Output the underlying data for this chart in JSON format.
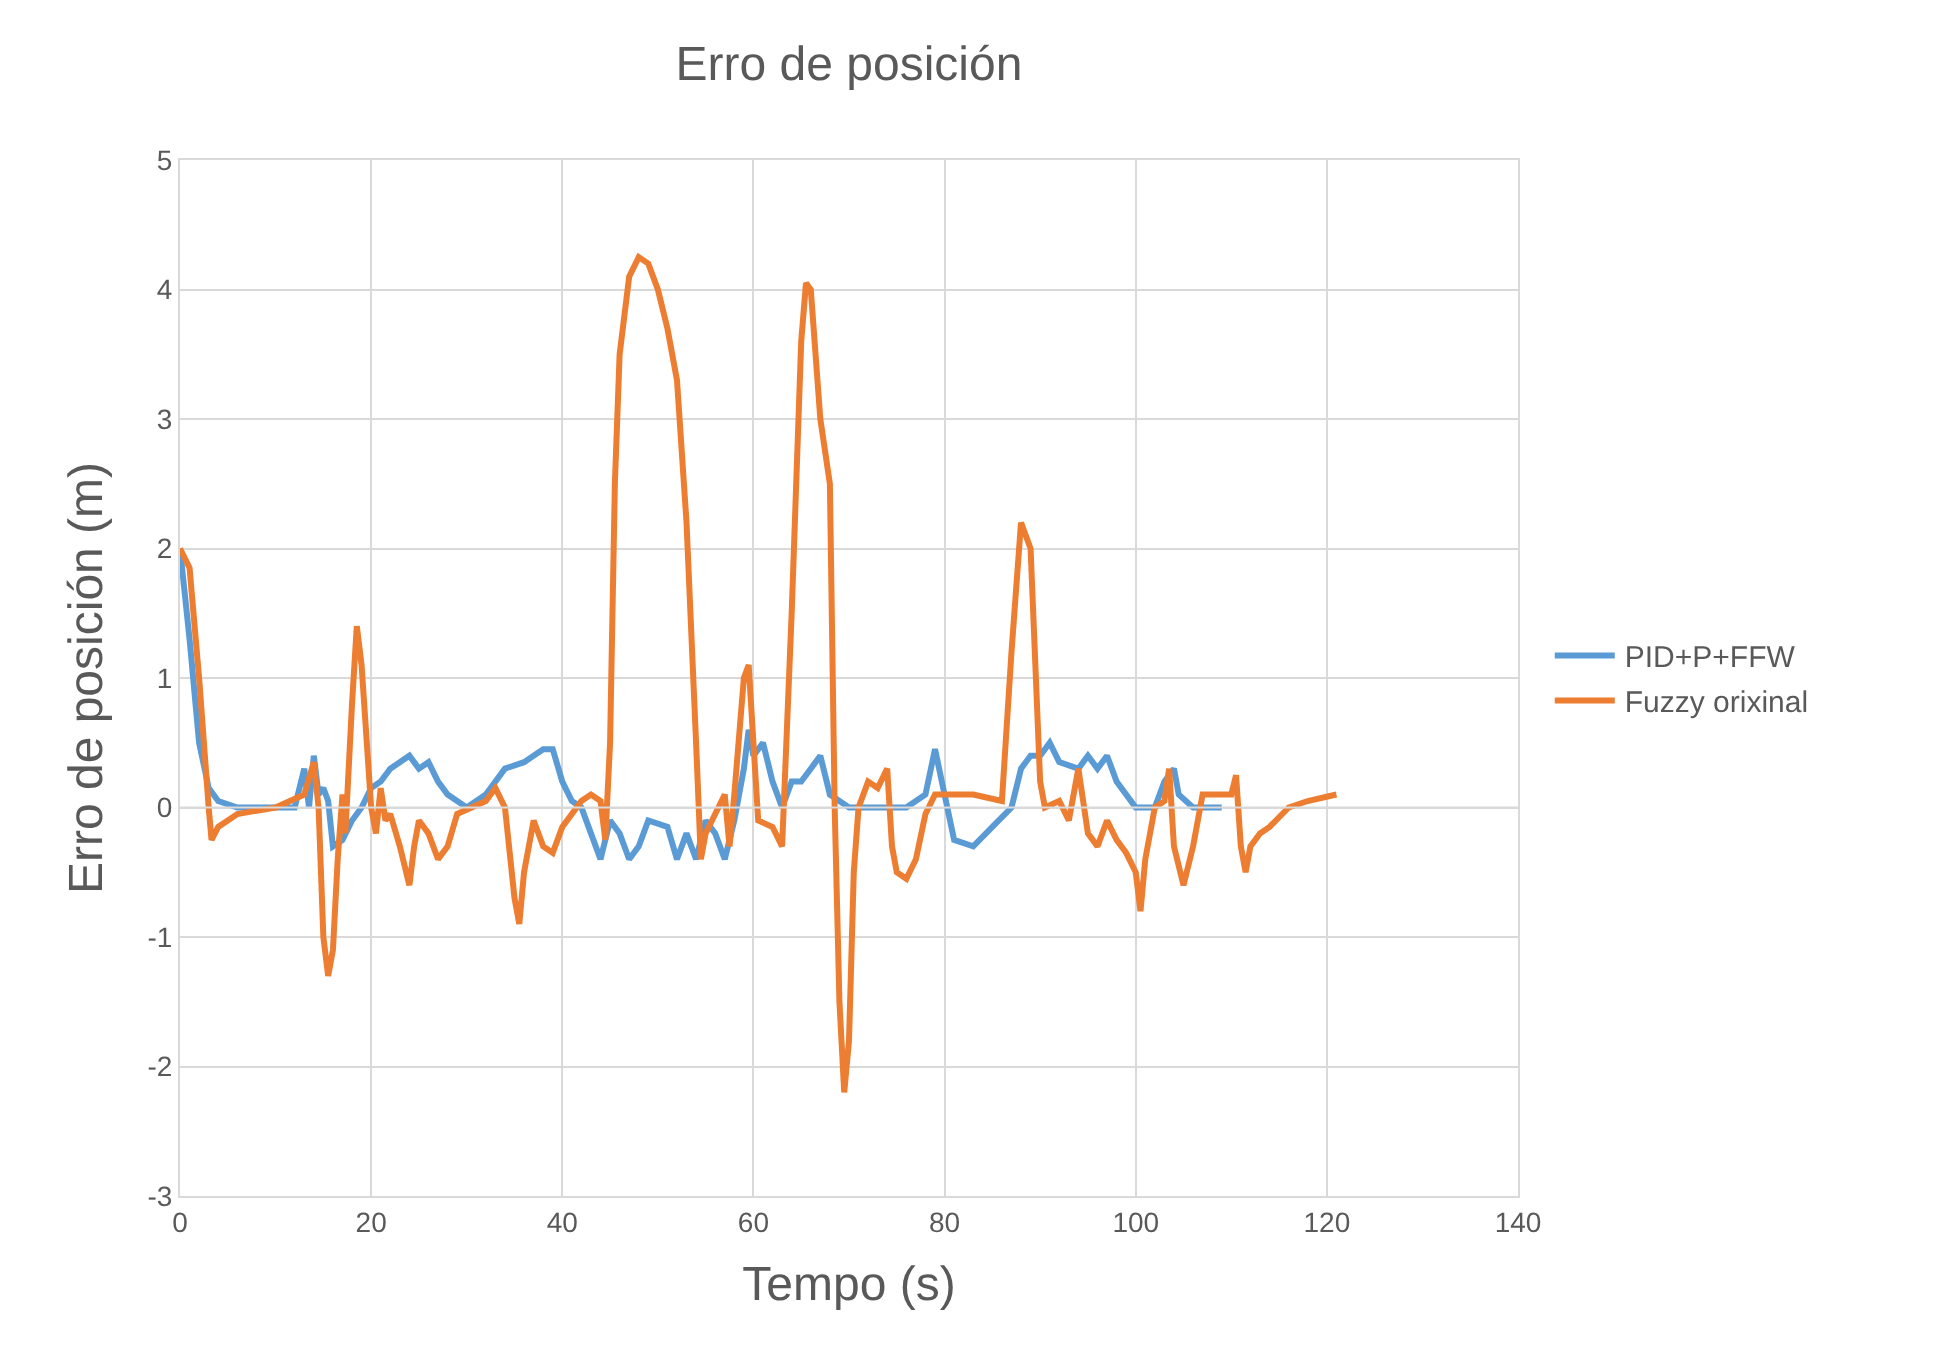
{
  "chart_data": {
    "type": "line",
    "title": "Erro de posición",
    "xlabel": "Tempo (s)",
    "ylabel": "Erro de posición (m)",
    "xlim": [
      0,
      140
    ],
    "xticks": [
      0,
      20,
      40,
      60,
      80,
      100,
      120,
      140
    ],
    "ylim": [
      -3,
      5
    ],
    "yticks": [
      -3,
      -2,
      -1,
      0,
      1,
      2,
      3,
      4,
      5
    ],
    "grid": true,
    "legend": "right",
    "marker": "none",
    "line_style": "solid",
    "series": [
      {
        "name": "PID+P+FFW",
        "color": "#5b9bd5",
        "x": [
          0,
          1,
          2,
          3,
          4,
          6,
          12,
          13,
          13.5,
          14,
          14.5,
          15,
          15.5,
          16,
          17,
          18,
          19,
          20,
          21,
          22,
          23,
          24,
          25,
          26,
          27,
          28,
          30,
          32,
          34,
          36,
          38,
          39,
          40,
          41,
          42,
          43,
          44,
          45,
          46,
          47,
          48,
          49,
          51,
          52,
          53,
          54,
          55,
          56,
          57,
          58,
          59,
          59.5,
          60,
          61,
          62,
          63,
          64,
          65,
          66,
          67,
          68,
          70,
          76,
          78,
          79,
          80,
          81,
          83,
          85,
          87,
          88,
          89,
          90,
          91,
          92,
          94,
          95,
          96,
          97,
          98,
          100,
          102,
          103,
          104,
          104.5,
          106,
          109
        ],
        "values": [
          2.0,
          1.3,
          0.5,
          0.15,
          0.05,
          0,
          0,
          0.3,
          0,
          0.4,
          0.1,
          0.15,
          0.05,
          -0.3,
          -0.25,
          -0.1,
          0,
          0.15,
          0.2,
          0.3,
          0.35,
          0.4,
          0.3,
          0.35,
          0.2,
          0.1,
          0,
          0.1,
          0.3,
          0.35,
          0.45,
          0.45,
          0.2,
          0.05,
          0,
          -0.2,
          -0.4,
          -0.1,
          -0.2,
          -0.4,
          -0.3,
          -0.1,
          -0.15,
          -0.4,
          -0.2,
          -0.4,
          -0.1,
          -0.2,
          -0.4,
          -0.1,
          0.3,
          0.6,
          0.4,
          0.5,
          0.2,
          0,
          0.2,
          0.2,
          0.3,
          0.4,
          0.1,
          0,
          0,
          0.1,
          0.45,
          0.1,
          -0.25,
          -0.3,
          -0.15,
          0,
          0.3,
          0.4,
          0.4,
          0.5,
          0.35,
          0.3,
          0.4,
          0.3,
          0.4,
          0.2,
          0,
          0,
          0.2,
          0.3,
          0.1,
          0,
          0
        ]
      },
      {
        "name": "Fuzzy orixinal",
        "color": "#ed7d31",
        "x": [
          0,
          1,
          2,
          3,
          3.3,
          4,
          6,
          10,
          13,
          14,
          14.5,
          15,
          15.5,
          16,
          16.5,
          17,
          17.3,
          18,
          18.5,
          19,
          20,
          20.5,
          21,
          21.5,
          22,
          23,
          24,
          24.5,
          25,
          26,
          27,
          28,
          29,
          32,
          33,
          34,
          35,
          35.5,
          36,
          37,
          38,
          39,
          40,
          41,
          42,
          43,
          44,
          44.5,
          45,
          45.5,
          46,
          47,
          48,
          49,
          50,
          51,
          52,
          53,
          54,
          54.5,
          55,
          56,
          57,
          57.5,
          58,
          59,
          59.5,
          60,
          60.5,
          62,
          63,
          64,
          65,
          65.5,
          66,
          67,
          68,
          68.5,
          69,
          69.5,
          70,
          70.5,
          71,
          72,
          73,
          74,
          74.5,
          75,
          76,
          77,
          78,
          79,
          83,
          86,
          87,
          88,
          89,
          90,
          90.5,
          92,
          93,
          94,
          95,
          96,
          97,
          98,
          99,
          100,
          100.5,
          101,
          102,
          103,
          103.5,
          104,
          105,
          106,
          107,
          110,
          110.5,
          111,
          111.5,
          112,
          113,
          114,
          116,
          118,
          121
        ],
        "values": [
          2.0,
          1.85,
          1.0,
          0,
          -0.25,
          -0.15,
          -0.05,
          0,
          0.1,
          0.35,
          0,
          -1.0,
          -1.3,
          -1.1,
          -0.4,
          0.1,
          -0.2,
          0.8,
          1.4,
          1.1,
          0,
          -0.2,
          0.15,
          -0.1,
          -0.05,
          -0.3,
          -0.6,
          -0.3,
          -0.1,
          -0.2,
          -0.4,
          -0.3,
          -0.05,
          0.05,
          0.15,
          0,
          -0.7,
          -0.9,
          -0.5,
          -0.1,
          -0.3,
          -0.35,
          -0.15,
          -0.05,
          0.05,
          0.1,
          0.05,
          -0.25,
          0.5,
          2.5,
          3.5,
          4.1,
          4.25,
          4.2,
          4.0,
          3.7,
          3.3,
          2.2,
          0.5,
          -0.4,
          -0.2,
          -0.05,
          0.1,
          -0.3,
          0.1,
          1.0,
          1.1,
          0.5,
          -0.1,
          -0.15,
          -0.3,
          1.5,
          3.6,
          4.05,
          4.0,
          3.0,
          2.5,
          0,
          -1.5,
          -2.2,
          -1.8,
          -0.5,
          0,
          0.2,
          0.15,
          0.3,
          -0.3,
          -0.5,
          -0.55,
          -0.4,
          -0.05,
          0.1,
          0.1,
          0.05,
          1.2,
          2.2,
          2.0,
          0.2,
          0,
          0.05,
          -0.1,
          0.3,
          -0.2,
          -0.3,
          -0.1,
          -0.25,
          -0.35,
          -0.5,
          -0.8,
          -0.4,
          0,
          0.05,
          0.3,
          -0.3,
          -0.6,
          -0.3,
          0.1,
          0.1,
          0.25,
          -0.3,
          -0.5,
          -0.3,
          -0.2,
          -0.15,
          0,
          0.05,
          0.1
        ]
      }
    ]
  }
}
